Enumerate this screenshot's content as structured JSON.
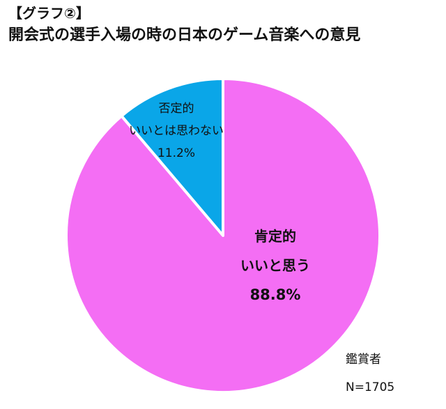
{
  "header": {
    "label": "【グラフ②】",
    "title": "開会式の選手入場の時の日本のゲーム音楽への意見"
  },
  "chart_data": {
    "type": "pie",
    "title": "開会式の選手入場の時の日本のゲーム音楽への意見",
    "slices": [
      {
        "category": "肯定的",
        "label": "いいと思う",
        "percent_text": "88.8%",
        "value": 88.8,
        "color": "#F46EF4"
      },
      {
        "category": "否定的",
        "label": "いいとは思わない",
        "percent_text": "11.2%",
        "value": 11.2,
        "color": "#0AA6E8"
      }
    ],
    "start": "12 o'clock",
    "direction": "clockwise",
    "border_color": "#ffffff"
  },
  "note": {
    "respondents": "鑑賞者",
    "sample_size": "N=1705"
  }
}
